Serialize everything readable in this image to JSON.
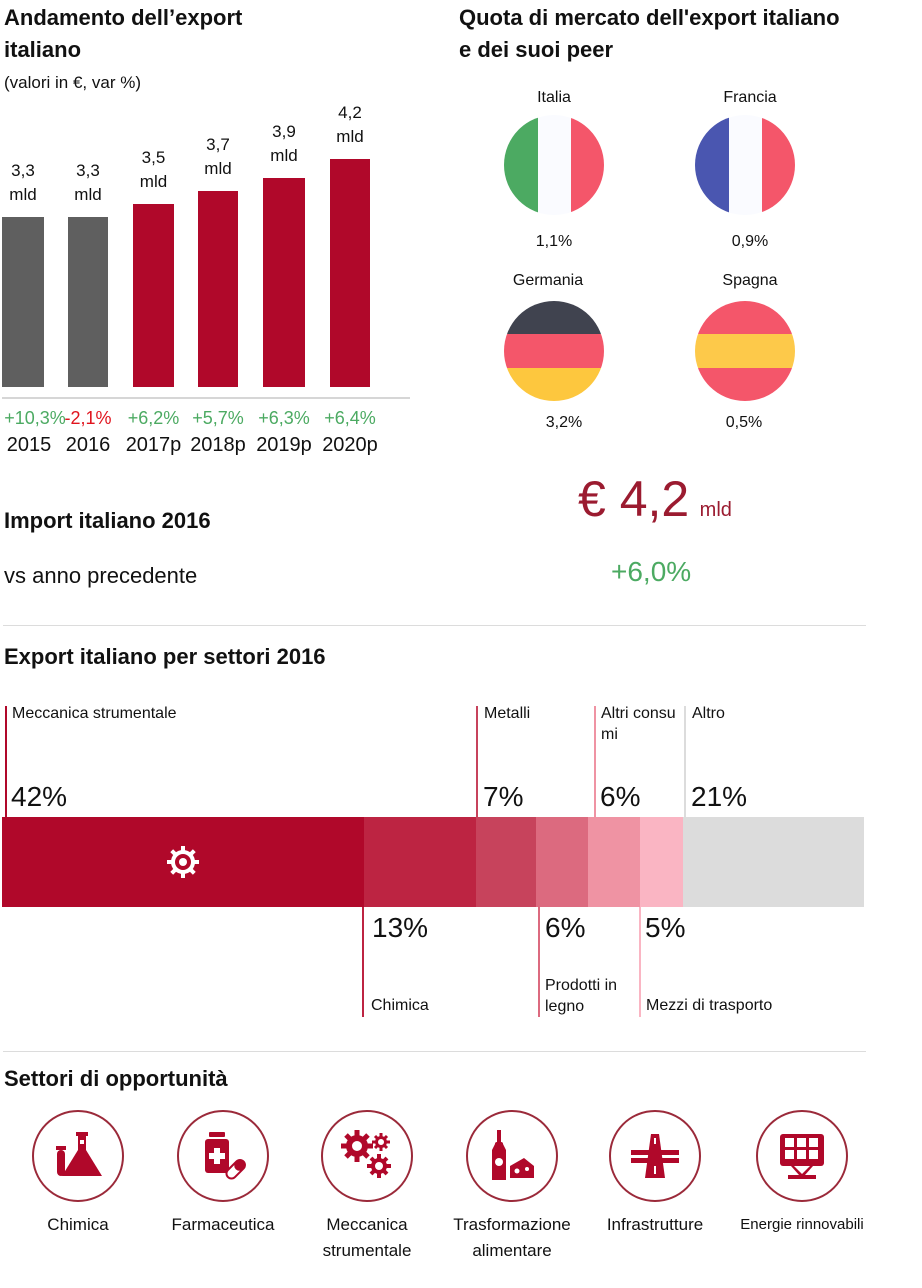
{
  "export_trend": {
    "title_line1": "Andamento dell’export",
    "title_line2": "italiano",
    "subtitle": "(valori in €, var %)"
  },
  "chart_data": [
    {
      "type": "bar",
      "title": "Andamento dell’export italiano",
      "subtitle": "(valori in €, var %)",
      "categories": [
        "2015",
        "2016",
        "2017p",
        "2018p",
        "2019p",
        "2020p"
      ],
      "values": [
        3.3,
        3.3,
        3.5,
        3.7,
        3.9,
        4.2
      ],
      "value_labels": [
        "3,3",
        "3,3",
        "3,5",
        "3,7",
        "3,9",
        "4,2"
      ],
      "unit_label": "mld",
      "changes": [
        "+10,3%",
        "-2,1%",
        "+6,2%",
        "+5,7%",
        "+6,3%",
        "+6,4%"
      ],
      "bar_colors": [
        "#5f5f5f",
        "#5f5f5f",
        "#b0082a",
        "#b0082a",
        "#b0082a",
        "#b0082a"
      ],
      "change_colors": [
        "#4caa62",
        "#e0141e",
        "#4caa62",
        "#4caa62",
        "#4caa62",
        "#4caa62"
      ],
      "xlabel": "",
      "ylabel": "",
      "grid": false
    },
    {
      "type": "bar",
      "orientation": "stacked-horizontal",
      "title": "Export italiano per settori 2016",
      "segments": [
        {
          "name": "Meccanica strumentale",
          "value": 42,
          "label": "42%",
          "color": "#b0082a",
          "side": "top",
          "icon": "gear-icon"
        },
        {
          "name": "Chimica",
          "value": 13,
          "label": "13%",
          "color": "#bd2442",
          "side": "bottom"
        },
        {
          "name": "Metalli",
          "value": 7,
          "label": "7%",
          "color": "#c7435c",
          "side": "top"
        },
        {
          "name": "Prodotti in legno",
          "value": 6,
          "label": "6%",
          "color": "#dc6a7f",
          "side": "bottom"
        },
        {
          "name": "Altri consumi",
          "value": 6,
          "label": "6%",
          "color": "#ef93a3",
          "side": "top"
        },
        {
          "name": "Mezzi di trasporto",
          "value": 5,
          "label": "5%",
          "color": "#fab5c3",
          "side": "bottom"
        },
        {
          "name": "Altro",
          "value": 21,
          "label": "21%",
          "color": "#dcdcdc",
          "side": "top"
        }
      ]
    }
  ],
  "market_share": {
    "title_line1": "Quota di mercato dell'export italiano",
    "title_line2": "e dei suoi peer",
    "countries": [
      {
        "name": "Italia",
        "share": "1,1%",
        "flag": "italy-flag-icon"
      },
      {
        "name": "Francia",
        "share": "0,9%",
        "flag": "france-flag-icon"
      },
      {
        "name": "Germania",
        "share": "3,2%",
        "flag": "germany-flag-icon"
      },
      {
        "name": "Spagna",
        "share": "0,5%",
        "flag": "spain-flag-icon"
      }
    ]
  },
  "import": {
    "title": "Import italiano 2016",
    "comparison_label": "vs anno precedente",
    "value": "€ 4,2",
    "unit": "mld",
    "change": "+6,0%",
    "value_color": "#9b1b30",
    "change_color": "#4caa62"
  },
  "sectors": {
    "title": "Export italiano per settori 2016",
    "label_altri_line1": "Altri consu",
    "label_altri_line2": "mi",
    "label_legno_line1": "Prodotti in",
    "label_legno_line2": "legno"
  },
  "opportunities": {
    "title": "Settori di opportunità",
    "items": [
      {
        "line1": "Chimica",
        "line2": "",
        "icon": "chemistry-flask-icon"
      },
      {
        "line1": "Farmaceutica",
        "line2": "",
        "icon": "medicine-bottle-icon"
      },
      {
        "line1": "Meccanica",
        "line2": "strumentale",
        "icon": "gears-icon"
      },
      {
        "line1": "Trasformazione",
        "line2": "alimentare",
        "icon": "wine-cheese-icon"
      },
      {
        "line1": "Infrastrutture",
        "line2": "",
        "icon": "highway-icon"
      },
      {
        "line1": "Energie rinnovabili",
        "line2": "",
        "icon": "solar-panel-icon"
      }
    ]
  }
}
